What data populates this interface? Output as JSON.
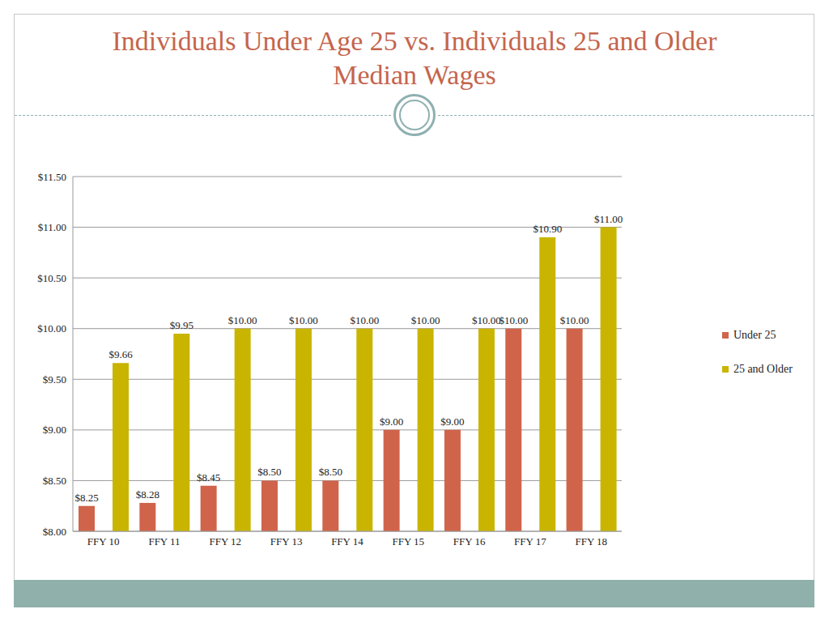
{
  "chart_data": {
    "type": "bar",
    "title": "Individuals Under Age 25 vs. Individuals 25 and Older Median Wages",
    "categories": [
      "FFY 10",
      "FFY 11",
      "FFY 12",
      "FFY 13",
      "FFY 14",
      "FFY 15",
      "FFY 16",
      "FFY 17",
      "FFY 18"
    ],
    "series": [
      {
        "name": "Under 25",
        "color": "#d0644a",
        "values": [
          8.25,
          8.28,
          8.45,
          8.5,
          8.5,
          9.0,
          9.0,
          10.0,
          10.0
        ],
        "value_labels": [
          "$8.25",
          "$8.28",
          "$8.45",
          "$8.50",
          "$8.50",
          "$9.00",
          "$9.00",
          "$10.00",
          "$10.00"
        ]
      },
      {
        "name": "25 and Older",
        "color": "#c9b500",
        "values": [
          9.66,
          9.95,
          10.0,
          10.0,
          10.0,
          10.0,
          10.0,
          10.9,
          11.0
        ],
        "value_labels": [
          "$9.66",
          "$9.95",
          "$10.00",
          "$10.00",
          "$10.00",
          "$10.00",
          "$10.00",
          "$10.90",
          "$11.00"
        ]
      }
    ],
    "ylim": [
      8,
      11.5
    ],
    "yticks": [
      {
        "value": 8,
        "label": "$8.00"
      },
      {
        "value": 8.5,
        "label": "$8.50"
      },
      {
        "value": 9,
        "label": "$9.00"
      },
      {
        "value": 9.5,
        "label": "$9.50"
      },
      {
        "value": 10,
        "label": "$10.00"
      },
      {
        "value": 10.5,
        "label": "$10.50"
      },
      {
        "value": 11,
        "label": "$11.00"
      },
      {
        "value": 11.5,
        "label": "$11.50"
      }
    ],
    "grid": true,
    "legend": "right",
    "data_labels": true
  }
}
